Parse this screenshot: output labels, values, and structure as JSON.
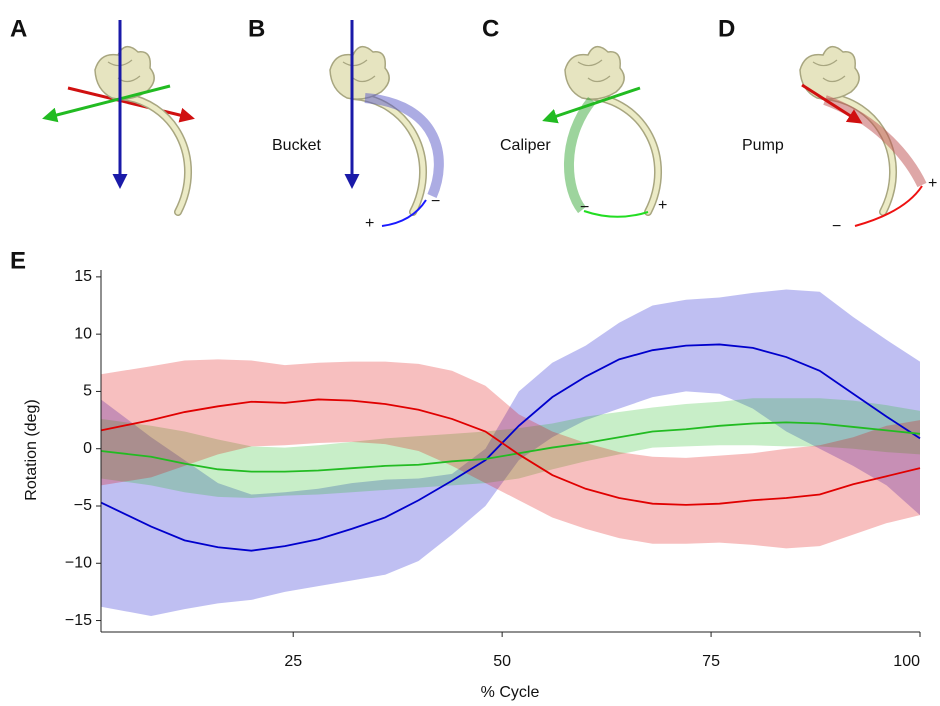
{
  "panels": [
    {
      "label": "A"
    },
    {
      "label": "B",
      "motion": "Bucket",
      "plus": "+",
      "minus": "−"
    },
    {
      "label": "C",
      "motion": "Caliper",
      "plus": "+",
      "minus": "−"
    },
    {
      "label": "D",
      "motion": "Pump",
      "plus": "+",
      "minus": "−"
    },
    {
      "label": "E"
    }
  ],
  "chart_data": {
    "type": "line",
    "xlabel": "% Cycle",
    "ylabel": "Rotation (deg)",
    "x": [
      2,
      8,
      12,
      16,
      20,
      24,
      28,
      32,
      36,
      40,
      44,
      48,
      52,
      56,
      60,
      64,
      68,
      72,
      76,
      80,
      84,
      88,
      92,
      96,
      100
    ],
    "xlim": [
      2,
      100
    ],
    "xticks": [
      25,
      50,
      75,
      100
    ],
    "ylim": [
      -16,
      15.6
    ],
    "yticks": [
      15,
      10,
      5,
      0,
      {
        "value": -5,
        "label": "−5"
      },
      {
        "value": -10,
        "label": "−10"
      },
      {
        "value": -15,
        "label": "−15"
      }
    ],
    "series": [
      {
        "color": "#0000cc",
        "values": [
          -4.7,
          -6.8,
          -8,
          -8.6,
          -8.9,
          -8.5,
          -7.9,
          -7,
          -6,
          -4.5,
          -2.8,
          -1,
          2,
          4.5,
          6.3,
          7.8,
          8.6,
          9,
          9.1,
          8.8,
          8,
          6.8,
          4.8,
          2.8,
          0.9
        ],
        "upper": [
          4.3,
          1,
          -1,
          -3,
          -4,
          -3.8,
          -3.5,
          -3,
          -2.7,
          -2.6,
          -2.2,
          0,
          5,
          7.5,
          9,
          11,
          12.5,
          13,
          13.2,
          13.6,
          13.9,
          13.7,
          11.5,
          9.5,
          7.6
        ],
        "lower": [
          -13.8,
          -14.6,
          -14,
          -13.5,
          -13.2,
          -12.5,
          -12,
          -11.5,
          -11,
          -9.8,
          -7.5,
          -5,
          -1,
          1,
          2.5,
          3.5,
          4.5,
          5,
          4.8,
          3.5,
          1.5,
          0,
          -1.5,
          -3.2,
          -5.8
        ]
      },
      {
        "color": "#22bb22",
        "values": [
          -0.2,
          -0.7,
          -1.3,
          -1.8,
          -2,
          -2,
          -1.9,
          -1.7,
          -1.5,
          -1.4,
          -1.1,
          -0.9,
          -0.4,
          0.1,
          0.5,
          1,
          1.5,
          1.7,
          2,
          2.2,
          2.3,
          2.2,
          1.9,
          1.6,
          1.3
        ],
        "upper": [
          2.6,
          2,
          1.5,
          0.8,
          0.2,
          0.1,
          0.3,
          0.6,
          0.9,
          1.1,
          1.3,
          1.5,
          1.8,
          2.2,
          2.8,
          3.2,
          3.6,
          3.9,
          4.1,
          4.4,
          4.4,
          4.4,
          4.2,
          3.8,
          3.3
        ],
        "lower": [
          -2.6,
          -3.2,
          -3.8,
          -4.2,
          -4.3,
          -4.1,
          -4,
          -3.8,
          -3.6,
          -3.4,
          -3.2,
          -3,
          -2.6,
          -1.8,
          -1.1,
          -0.5,
          0.1,
          0.2,
          0.3,
          0.3,
          0.2,
          0.2,
          0,
          -0.3,
          -0.5
        ]
      },
      {
        "color": "#e00000",
        "values": [
          1.6,
          2.5,
          3.2,
          3.7,
          4.1,
          4,
          4.3,
          4.2,
          3.9,
          3.4,
          2.6,
          1.5,
          -0.5,
          -2.3,
          -3.5,
          -4.3,
          -4.8,
          -4.9,
          -4.8,
          -4.5,
          -4.3,
          -4,
          -3.1,
          -2.4,
          -1.7
        ],
        "upper": [
          6.5,
          7.2,
          7.7,
          7.8,
          7.7,
          7.3,
          7.5,
          7.6,
          7.6,
          7.4,
          6.8,
          5.5,
          3,
          1.5,
          0.5,
          -0.3,
          -0.7,
          -0.8,
          -0.6,
          -0.4,
          0,
          0.3,
          1,
          2,
          2.5
        ],
        "lower": [
          -3.2,
          -2.5,
          -1.5,
          -0.5,
          0.2,
          0.3,
          0.5,
          0.6,
          0.4,
          -0.2,
          -1.5,
          -3,
          -4.5,
          -6,
          -7,
          -7.8,
          -8.3,
          -8.3,
          -8.2,
          -8.4,
          -8.7,
          -8.5,
          -7.5,
          -6.5,
          -5.8
        ]
      }
    ]
  }
}
